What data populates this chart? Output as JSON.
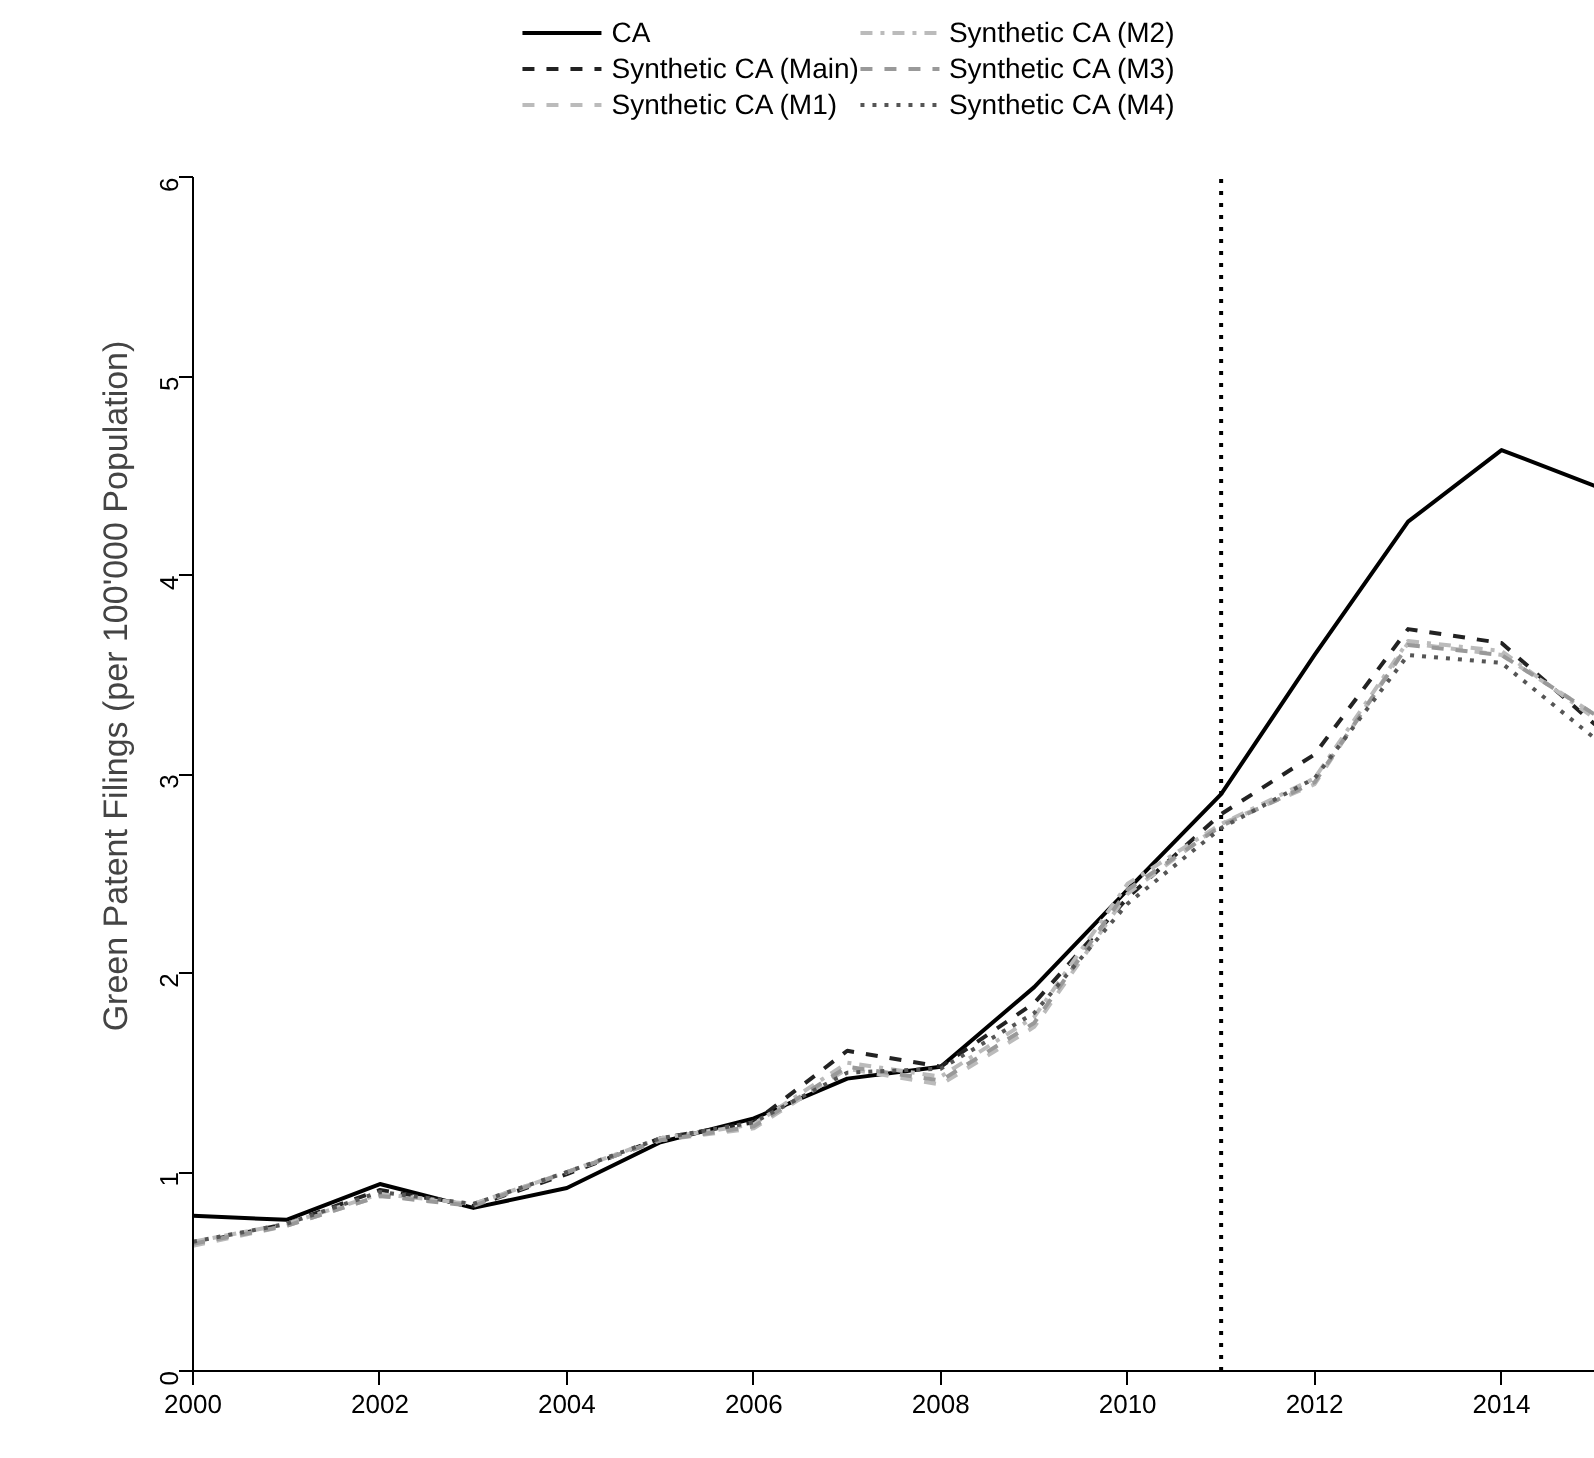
{
  "chart_data": {
    "type": "line",
    "ylabel": "Green Patent Filings (per 100'000 Population)",
    "x": [
      2000,
      2001,
      2002,
      2003,
      2004,
      2005,
      2006,
      2007,
      2008,
      2009,
      2010,
      2011,
      2012,
      2013,
      2014,
      2015
    ],
    "xlim": [
      2000,
      2015
    ],
    "xticks": [
      2000,
      2002,
      2004,
      2006,
      2008,
      2010,
      2012,
      2014
    ],
    "ylim": [
      0,
      6
    ],
    "yticks": [
      0,
      1,
      2,
      3,
      4,
      5,
      6
    ],
    "grid": false,
    "legend": "top",
    "marker": "none",
    "ref_lines": [
      {
        "axis": "x",
        "value": 2011,
        "label": null,
        "color": "#000000",
        "line_style": "dotted"
      }
    ],
    "series": [
      {
        "name": "CA",
        "color": "#000000",
        "line_style": "solid",
        "values": [
          0.78,
          0.76,
          0.94,
          0.82,
          0.92,
          1.15,
          1.27,
          1.47,
          1.53,
          1.93,
          2.42,
          2.9,
          3.6,
          4.27,
          4.63,
          4.45
        ]
      },
      {
        "name": "Synthetic CA (Main)",
        "color": "#222222",
        "line_style": "dashed",
        "values": [
          0.64,
          0.74,
          0.91,
          0.83,
          0.99,
          1.17,
          1.25,
          1.61,
          1.53,
          1.85,
          2.38,
          2.8,
          3.1,
          3.73,
          3.66,
          3.25
        ]
      },
      {
        "name": "Synthetic CA (M1)",
        "color": "#bbbbbb",
        "line_style": "dashed",
        "values": [
          0.63,
          0.73,
          0.88,
          0.84,
          1.0,
          1.16,
          1.22,
          1.52,
          1.44,
          1.73,
          2.4,
          2.75,
          2.95,
          3.66,
          3.6,
          3.3
        ]
      },
      {
        "name": "Synthetic CA (M2)",
        "color": "#bbbbbb",
        "line_style": "dashdot",
        "values": [
          0.65,
          0.74,
          0.89,
          0.84,
          1.0,
          1.17,
          1.24,
          1.55,
          1.48,
          1.78,
          2.45,
          2.75,
          2.98,
          3.67,
          3.62,
          3.28
        ]
      },
      {
        "name": "Synthetic CA (M3)",
        "color": "#999999",
        "line_style": "dashed",
        "values": [
          0.64,
          0.73,
          0.88,
          0.83,
          1.0,
          1.16,
          1.23,
          1.53,
          1.46,
          1.75,
          2.42,
          2.74,
          2.96,
          3.65,
          3.6,
          3.3
        ]
      },
      {
        "name": "Synthetic CA (M4)",
        "color": "#555555",
        "line_style": "dotted",
        "values": [
          0.65,
          0.74,
          0.9,
          0.84,
          1.0,
          1.17,
          1.25,
          1.5,
          1.52,
          1.8,
          2.35,
          2.73,
          2.98,
          3.6,
          3.56,
          3.18
        ]
      }
    ]
  }
}
